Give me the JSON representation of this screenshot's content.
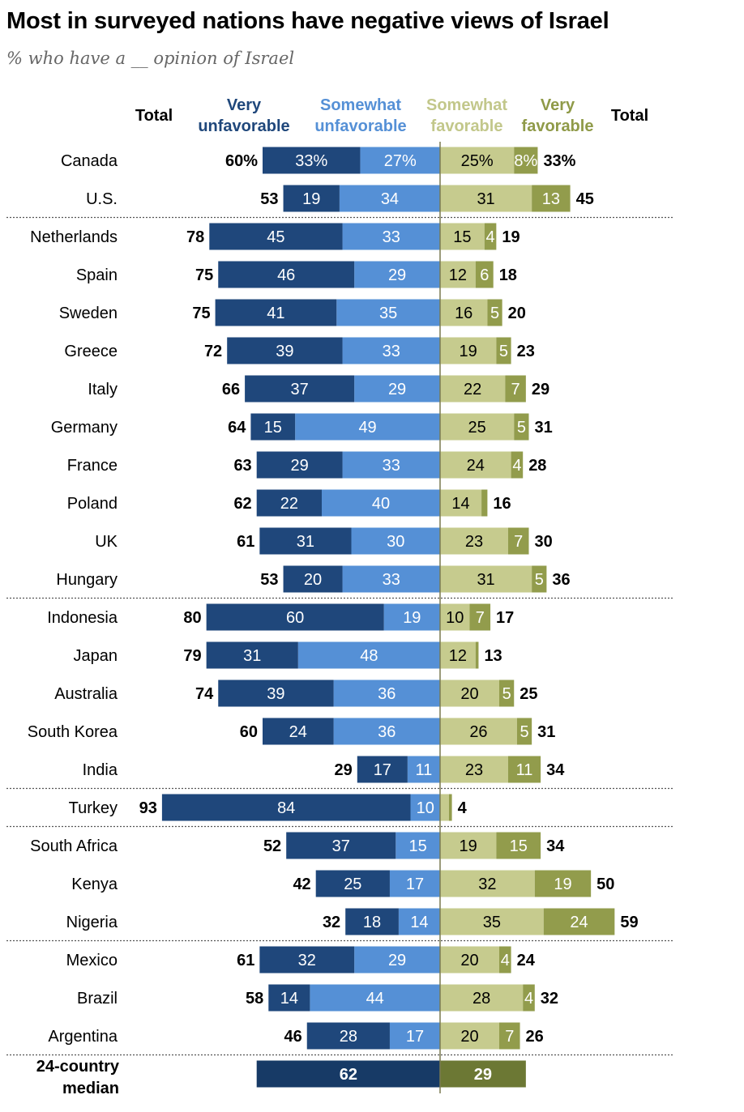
{
  "title": "Most in surveyed nations have negative views of Israel",
  "subtitle": "% who have a __ opinion of Israel",
  "headers": {
    "total_left": "Total",
    "very_unfav": [
      "Very",
      "unfavorable"
    ],
    "somewhat_unfav": [
      "Somewhat",
      "unfavorable"
    ],
    "somewhat_fav": [
      "Somewhat",
      "favorable"
    ],
    "very_fav": [
      "Very",
      "favorable"
    ],
    "total_right": "Total"
  },
  "colors": {
    "very_unfav": "#1f477b",
    "somewhat_unfav": "#5590d6",
    "somewhat_fav": "#c6cb8e",
    "very_fav": "#929c4c",
    "median_unfav": "#173a66",
    "median_fav": "#6c7834",
    "center_line": "#7a7a50"
  },
  "chart_data": {
    "type": "bar",
    "orientation": "horizontal-diverging",
    "series_names": [
      "Very unfavorable",
      "Somewhat unfavorable",
      "Somewhat favorable",
      "Very favorable"
    ],
    "rows": [
      {
        "country": "Canada",
        "unfav_total": "60%",
        "very_unfav": 33,
        "somewhat_unfav": 27,
        "somewhat_fav": 25,
        "very_fav": 8,
        "fav_total": "33%",
        "labels": [
          "33%",
          "27%",
          "25%",
          "8%"
        ],
        "group_break_after": false
      },
      {
        "country": "U.S.",
        "unfav_total": "53",
        "very_unfav": 19,
        "somewhat_unfav": 34,
        "somewhat_fav": 31,
        "very_fav": 13,
        "fav_total": "45",
        "group_break_after": true
      },
      {
        "country": "Netherlands",
        "unfav_total": "78",
        "very_unfav": 45,
        "somewhat_unfav": 33,
        "somewhat_fav": 15,
        "very_fav": 4,
        "fav_total": "19"
      },
      {
        "country": "Spain",
        "unfav_total": "75",
        "very_unfav": 46,
        "somewhat_unfav": 29,
        "somewhat_fav": 12,
        "very_fav": 6,
        "fav_total": "18"
      },
      {
        "country": "Sweden",
        "unfav_total": "75",
        "very_unfav": 41,
        "somewhat_unfav": 35,
        "somewhat_fav": 16,
        "very_fav": 5,
        "fav_total": "20"
      },
      {
        "country": "Greece",
        "unfav_total": "72",
        "very_unfav": 39,
        "somewhat_unfav": 33,
        "somewhat_fav": 19,
        "very_fav": 5,
        "fav_total": "23"
      },
      {
        "country": "Italy",
        "unfav_total": "66",
        "very_unfav": 37,
        "somewhat_unfav": 29,
        "somewhat_fav": 22,
        "very_fav": 7,
        "fav_total": "29"
      },
      {
        "country": "Germany",
        "unfav_total": "64",
        "very_unfav": 15,
        "somewhat_unfav": 49,
        "somewhat_fav": 25,
        "very_fav": 5,
        "fav_total": "31"
      },
      {
        "country": "France",
        "unfav_total": "63",
        "very_unfav": 29,
        "somewhat_unfav": 33,
        "somewhat_fav": 24,
        "very_fav": 4,
        "fav_total": "28"
      },
      {
        "country": "Poland",
        "unfav_total": "62",
        "very_unfav": 22,
        "somewhat_unfav": 40,
        "somewhat_fav": 14,
        "very_fav": 2,
        "fav_total": "16"
      },
      {
        "country": "UK",
        "unfav_total": "61",
        "very_unfav": 31,
        "somewhat_unfav": 30,
        "somewhat_fav": 23,
        "very_fav": 7,
        "fav_total": "30"
      },
      {
        "country": "Hungary",
        "unfav_total": "53",
        "very_unfav": 20,
        "somewhat_unfav": 33,
        "somewhat_fav": 31,
        "very_fav": 5,
        "fav_total": "36",
        "group_break_after": true
      },
      {
        "country": "Indonesia",
        "unfav_total": "80",
        "very_unfav": 60,
        "somewhat_unfav": 19,
        "somewhat_fav": 10,
        "very_fav": 7,
        "fav_total": "17"
      },
      {
        "country": "Japan",
        "unfav_total": "79",
        "very_unfav": 31,
        "somewhat_unfav": 48,
        "somewhat_fav": 12,
        "very_fav": 1,
        "fav_total": "13"
      },
      {
        "country": "Australia",
        "unfav_total": "74",
        "very_unfav": 39,
        "somewhat_unfav": 36,
        "somewhat_fav": 20,
        "very_fav": 5,
        "fav_total": "25"
      },
      {
        "country": "South Korea",
        "unfav_total": "60",
        "very_unfav": 24,
        "somewhat_unfav": 36,
        "somewhat_fav": 26,
        "very_fav": 5,
        "fav_total": "31"
      },
      {
        "country": "India",
        "unfav_total": "29",
        "very_unfav": 17,
        "somewhat_unfav": 11,
        "somewhat_fav": 23,
        "very_fav": 11,
        "fav_total": "34",
        "group_break_after": true
      },
      {
        "country": "Turkey",
        "unfav_total": "93",
        "very_unfav": 84,
        "somewhat_unfav": 10,
        "somewhat_fav": 3,
        "very_fav": 1,
        "fav_total": "4",
        "group_break_after": true
      },
      {
        "country": "South Africa",
        "unfav_total": "52",
        "very_unfav": 37,
        "somewhat_unfav": 15,
        "somewhat_fav": 19,
        "very_fav": 15,
        "fav_total": "34"
      },
      {
        "country": "Kenya",
        "unfav_total": "42",
        "very_unfav": 25,
        "somewhat_unfav": 17,
        "somewhat_fav": 32,
        "very_fav": 19,
        "fav_total": "50"
      },
      {
        "country": "Nigeria",
        "unfav_total": "32",
        "very_unfav": 18,
        "somewhat_unfav": 14,
        "somewhat_fav": 35,
        "very_fav": 24,
        "fav_total": "59",
        "group_break_after": true
      },
      {
        "country": "Mexico",
        "unfav_total": "61",
        "very_unfav": 32,
        "somewhat_unfav": 29,
        "somewhat_fav": 20,
        "very_fav": 4,
        "fav_total": "24"
      },
      {
        "country": "Brazil",
        "unfav_total": "58",
        "very_unfav": 14,
        "somewhat_unfav": 44,
        "somewhat_fav": 28,
        "very_fav": 4,
        "fav_total": "32"
      },
      {
        "country": "Argentina",
        "unfav_total": "46",
        "very_unfav": 28,
        "somewhat_unfav": 17,
        "somewhat_fav": 20,
        "very_fav": 7,
        "fav_total": "26",
        "group_break_after": true
      }
    ],
    "median": {
      "label": [
        "24-country",
        "median"
      ],
      "unfavorable": 62,
      "favorable": 29
    }
  }
}
